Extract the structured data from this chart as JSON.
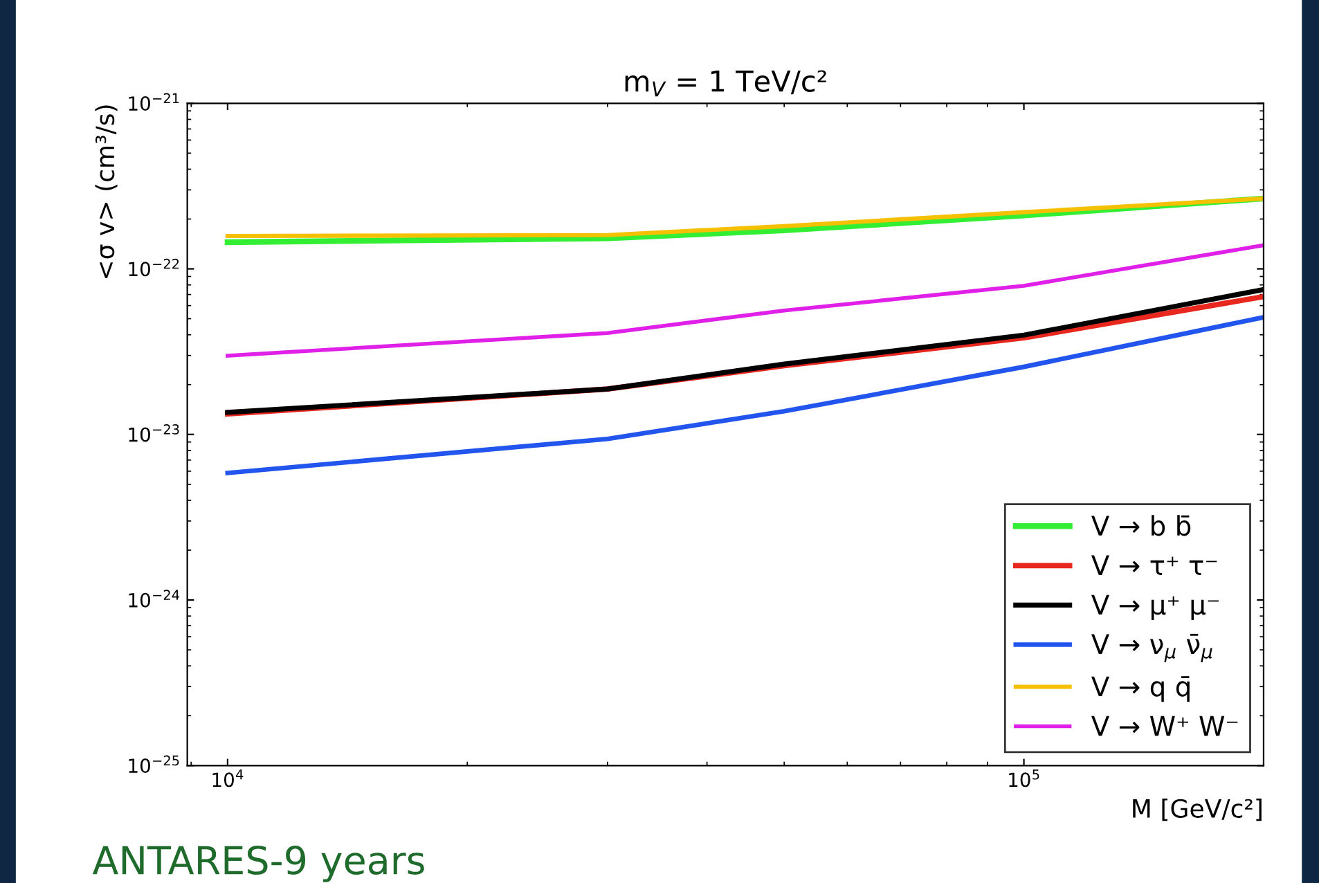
{
  "chart_data": {
    "type": "line",
    "title": "m$_{V}$ = 1 TeV/c²",
    "xlabel": "M [GeV/c²]",
    "ylabel": "<σ v> (cm³/s)",
    "annotations": [
      "ANTARES-9 years"
    ],
    "log": "xy",
    "grid": false,
    "legend": "bottom right",
    "marker": "none",
    "line_style": "solid",
    "xlim": [
      8900,
      200000
    ],
    "ylim": [
      1e-25,
      1e-21
    ],
    "xticks": [
      {
        "value": 10000,
        "label": "10$^{4}$"
      },
      {
        "value": 100000,
        "label": "10$^{5}$"
      }
    ],
    "yticks": [
      {
        "value": 1e-25,
        "label": "10$^{−25}$"
      },
      {
        "value": 1e-24,
        "label": "10$^{−24}$"
      },
      {
        "value": 1e-23,
        "label": "10$^{−23}$"
      },
      {
        "value": 1e-22,
        "label": "10$^{−22}$"
      },
      {
        "value": 1e-21,
        "label": "10$^{−21}$"
      }
    ],
    "x": [
      10000,
      30000,
      50000,
      100000,
      200000
    ],
    "series": [
      {
        "name": "V → b b̄",
        "color": "#33ee33",
        "values": [
          1.45e-22,
          1.53e-22,
          1.71e-22,
          2.1e-22,
          2.66e-22
        ]
      },
      {
        "name": "V → τ⁺ τ⁻",
        "color": "#e8271f",
        "values": [
          1.33e-23,
          1.88e-23,
          2.6e-23,
          3.83e-23,
          6.8e-23
        ]
      },
      {
        "name": "V → μ⁺ μ⁻",
        "color": "#000000",
        "values": [
          1.36e-23,
          1.88e-23,
          2.66e-23,
          3.98e-23,
          7.5e-23
        ]
      },
      {
        "name": "V → ν$_{μ}$ ν̄$_{μ}$",
        "color": "#2255ee",
        "values": [
          5.85e-24,
          9.4e-24,
          1.38e-23,
          2.56e-23,
          5.1e-23
        ]
      },
      {
        "name": "V → q q̄",
        "color": "#f5c000",
        "values": [
          1.58e-22,
          1.6e-22,
          1.81e-22,
          2.2e-22,
          2.66e-22
        ]
      },
      {
        "name": "V → W⁺ W⁻",
        "color": "#e020e8",
        "values": [
          2.99e-23,
          4.1e-23,
          5.6e-23,
          7.9e-23,
          1.39e-22
        ]
      }
    ]
  }
}
